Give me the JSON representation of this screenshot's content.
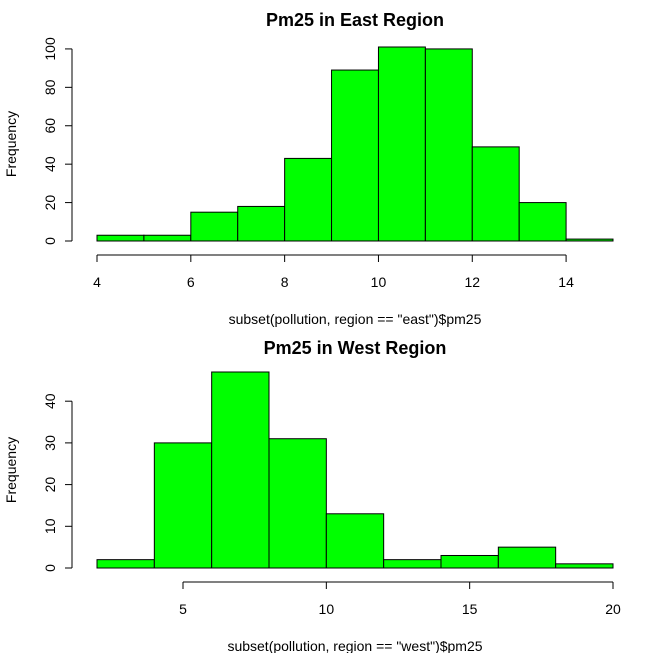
{
  "chart_data": [
    {
      "type": "bar",
      "subtype": "histogram",
      "title": "Pm25 in East Region",
      "xlabel": "subset(pollution, region == \"east\")$pm25",
      "ylabel": "Frequency",
      "bin_edges": [
        4,
        5,
        6,
        7,
        8,
        9,
        10,
        11,
        12,
        13,
        14,
        15
      ],
      "values": [
        3,
        3,
        15,
        18,
        43,
        89,
        101,
        100,
        49,
        20,
        1
      ],
      "xlim": [
        4,
        15
      ],
      "ylim": [
        0,
        101
      ],
      "xticks": [
        4,
        6,
        8,
        10,
        12,
        14
      ],
      "yticks": [
        0,
        20,
        40,
        60,
        80,
        100
      ],
      "bar_color": "#00ff00",
      "grid": false
    },
    {
      "type": "bar",
      "subtype": "histogram",
      "title": "Pm25 in West Region",
      "xlabel": "subset(pollution, region == \"west\")$pm25",
      "ylabel": "Frequency",
      "bin_edges": [
        2,
        4,
        6,
        8,
        10,
        12,
        14,
        16,
        18,
        20
      ],
      "values": [
        2,
        30,
        47,
        31,
        13,
        2,
        3,
        5,
        1
      ],
      "xlim": [
        2,
        20
      ],
      "ylim": [
        0,
        47
      ],
      "xticks": [
        5,
        10,
        15,
        20
      ],
      "yticks": [
        0,
        10,
        20,
        30,
        40
      ],
      "bar_color": "#00ff00",
      "grid": false
    }
  ]
}
